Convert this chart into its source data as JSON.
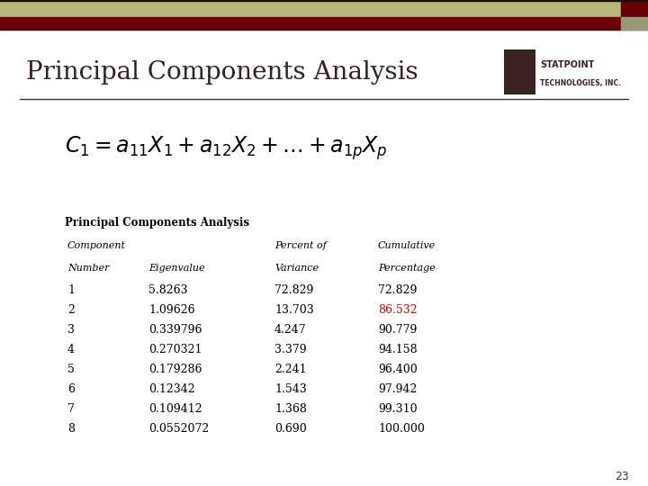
{
  "title": "Principal Components Analysis",
  "page_number": "23",
  "header_bar_olive": "#B5B87A",
  "header_bar_darkred": "#6B0000",
  "header_sq_olive": "#B5B87A",
  "background_color": "#FFFFFF",
  "table_title": "Principal Components Analysis",
  "col_headers_row1": [
    "Component",
    "",
    "Percent of",
    "Cumulative"
  ],
  "col_headers_row2": [
    "Number",
    "Eigenvalue",
    "Variance",
    "Percentage"
  ],
  "components": [
    1,
    2,
    3,
    4,
    5,
    6,
    7,
    8
  ],
  "eigenvalues": [
    "5.8263",
    "1.09626",
    "0.339796",
    "0.270321",
    "0.179286",
    "0.12342",
    "0.109412",
    "0.0552072"
  ],
  "percent_variance": [
    "72.829",
    "13.703",
    "4.247",
    "3.379",
    "2.241",
    "1.543",
    "1.368",
    "0.690"
  ],
  "cumulative": [
    "72.829",
    "86.532",
    "90.779",
    "94.158",
    "96.400",
    "97.942",
    "99.310",
    "100.000"
  ],
  "highlight_row": 1,
  "highlight_color": "#CC0000",
  "normal_color": "#000000",
  "title_color": "#3B1F1F",
  "statpoint_text_color": "#3B2020"
}
